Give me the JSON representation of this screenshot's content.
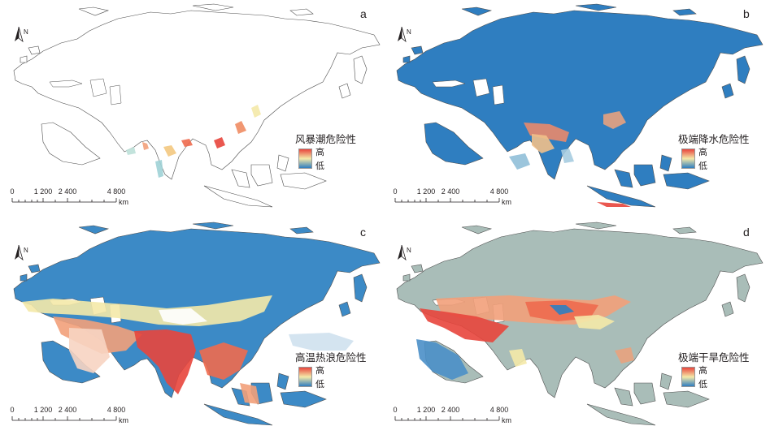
{
  "panels": [
    {
      "letter": "a",
      "legend_title": "风暴潮危险性",
      "legend_high": "高",
      "legend_low": "低",
      "fill": "#ffffff",
      "pattern": "coast"
    },
    {
      "letter": "b",
      "legend_title": "极端降水危险性",
      "legend_high": "高",
      "legend_low": "低",
      "fill": "#2f7ec0",
      "pattern": "precip"
    },
    {
      "letter": "c",
      "legend_title": "高温热浪危险性",
      "legend_high": "高",
      "legend_low": "低",
      "fill": "#3c8ac6",
      "pattern": "heat"
    },
    {
      "letter": "d",
      "legend_title": "极端干旱危险性",
      "legend_high": "高",
      "legend_low": "低",
      "fill": "#a9bdb8",
      "pattern": "drought"
    }
  ],
  "scale_bar": {
    "ticks": [
      "0",
      "1 200",
      "2 400",
      "4 800"
    ],
    "unit": "km"
  },
  "north_arrow": {
    "label": "N",
    "icon": "north-arrow-icon"
  },
  "colors": {
    "high": "#e8453c",
    "mid": "#f4e9a8",
    "low": "#2f7ec0",
    "outline": "#4d4d4d"
  }
}
